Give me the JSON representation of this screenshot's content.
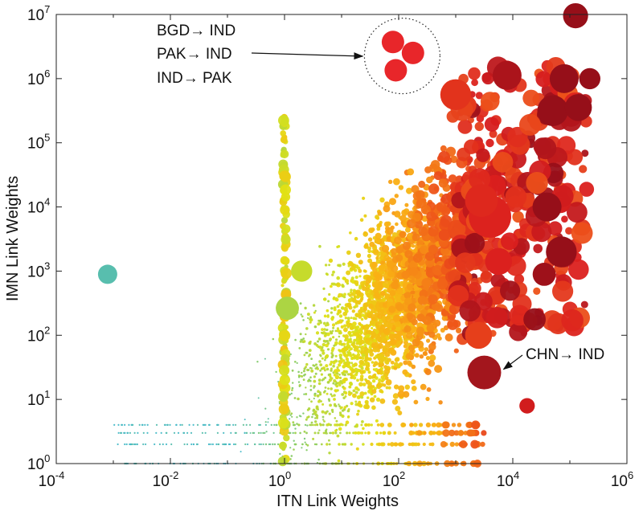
{
  "chart_data": {
    "type": "scatter",
    "title": "",
    "xlabel": "ITN Link Weights",
    "ylabel": "IMN Link Weights",
    "xscale": "log",
    "yscale": "log",
    "xlim_exp": [
      -4,
      6
    ],
    "ylim_exp": [
      0,
      7
    ],
    "x_ticks": [
      {
        "base": "10",
        "exp": "-4"
      },
      {
        "base": "10",
        "exp": "-2"
      },
      {
        "base": "10",
        "exp": "0"
      },
      {
        "base": "10",
        "exp": "2"
      },
      {
        "base": "10",
        "exp": "4"
      },
      {
        "base": "10",
        "exp": "6"
      }
    ],
    "y_ticks": [
      {
        "base": "10",
        "exp": "0"
      },
      {
        "base": "10",
        "exp": "1"
      },
      {
        "base": "10",
        "exp": "2"
      },
      {
        "base": "10",
        "exp": "3"
      },
      {
        "base": "10",
        "exp": "4"
      },
      {
        "base": "10",
        "exp": "5"
      },
      {
        "base": "10",
        "exp": "6"
      },
      {
        "base": "10",
        "exp": "7"
      }
    ],
    "grid": false,
    "color_scale": "bubble colour and size increase with link weight: teal/green (small) to yellow, orange, red, dark red (large)",
    "annotations": [
      {
        "lines": [
          "BGD→ IND",
          "PAK→ IND",
          "IND→ PAK"
        ],
        "target": "circled cluster of three large red bubbles near ITN 10^2.3, IMN 10^6.3"
      },
      {
        "lines": [
          "CHN→ IND"
        ],
        "target": "largest dark red bubble near ITN 10^3.5, IMN 10^1.4"
      }
    ],
    "highlighted_points": [
      {
        "label": "BGD→ IND",
        "log10_x": 1.9,
        "log10_y": 6.57,
        "size": 0.6
      },
      {
        "label": "PAK→ IND",
        "log10_x": 2.25,
        "log10_y": 6.4,
        "size": 0.6
      },
      {
        "label": "IND→ PAK",
        "log10_x": 1.95,
        "log10_y": 6.13,
        "size": 0.6
      },
      {
        "label": "CHN→ IND",
        "log10_x": 3.5,
        "log10_y": 1.42,
        "size": 1.0
      }
    ],
    "points": [
      {
        "log10_x": 5.1,
        "log10_y": 6.98,
        "size": 0.4
      },
      {
        "log10_x": 4.9,
        "log10_y": 6.0,
        "size": 0.5
      },
      {
        "log10_x": 5.35,
        "log10_y": 6.0,
        "size": 0.3
      },
      {
        "log10_x": 4.7,
        "log10_y": 5.5,
        "size": 0.55
      },
      {
        "log10_x": 5.15,
        "log10_y": 5.55,
        "size": 0.45
      },
      {
        "log10_x": 4.6,
        "log10_y": 4.0,
        "size": 0.5
      },
      {
        "log10_x": 4.85,
        "log10_y": 3.3,
        "size": 0.55
      },
      {
        "log10_x": 4.55,
        "log10_y": 2.95,
        "size": 0.35
      },
      {
        "log10_x": 3.75,
        "log10_y": 3.15,
        "size": 0.45
      },
      {
        "log10_x": 3.4,
        "log10_y": 2.0,
        "size": 0.45
      },
      {
        "log10_x": 3.6,
        "log10_y": 3.85,
        "size": 0.85
      },
      {
        "log10_x": 3.45,
        "log10_y": 4.1,
        "size": 0.6
      },
      {
        "log10_x": 3.0,
        "log10_y": 5.75,
        "size": 0.55
      },
      {
        "log10_x": 3.9,
        "log10_y": 6.05,
        "size": 0.5
      },
      {
        "log10_x": 0.3,
        "log10_y": 3.0,
        "size": 0.3
      },
      {
        "log10_x": -3.1,
        "log10_y": 2.95,
        "size": 0.25
      },
      {
        "log10_x": 4.25,
        "log10_y": 0.9,
        "size": 0.15
      },
      {
        "log10_x": 0.05,
        "log10_y": 2.42,
        "size": 0.35
      }
    ]
  }
}
